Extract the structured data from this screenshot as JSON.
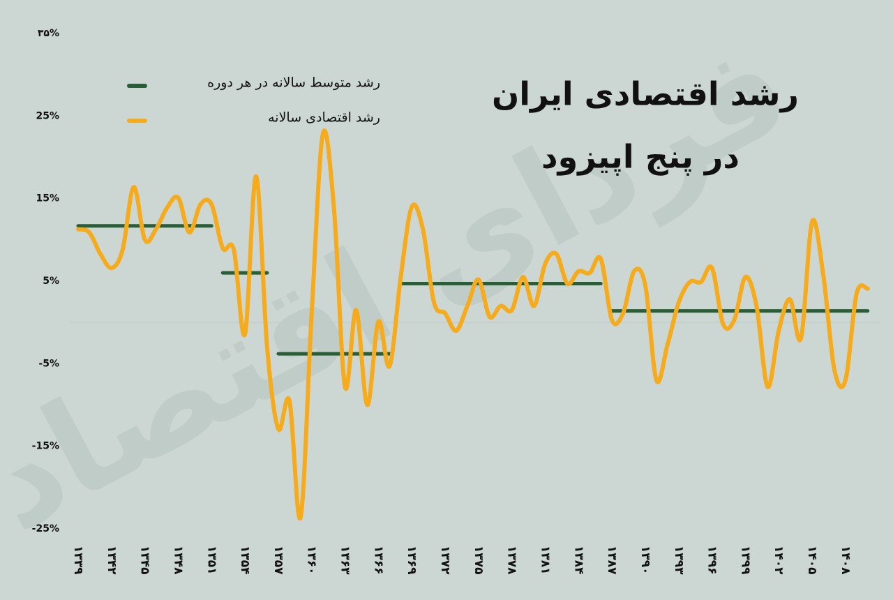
{
  "chart_data": {
    "type": "line",
    "title": [
      "رشد اقتصادی ایران",
      "در پنج اپیزود"
    ],
    "watermark": "فردای اقتصاد",
    "categories": [
      "۱۳۳۹",
      null,
      null,
      "۱۳۴۲",
      null,
      null,
      "۱۳۴۵",
      null,
      null,
      "۱۳۴۸",
      null,
      null,
      "۱۳۵۱",
      null,
      null,
      "۱۳۵۴",
      null,
      null,
      "۱۳۵۷",
      null,
      null,
      "۱۳۶۰",
      null,
      null,
      "۱۳۶۳",
      null,
      null,
      "۱۳۶۶",
      null,
      null,
      "۱۳۶۹",
      null,
      null,
      "۱۳۷۲",
      null,
      null,
      "۱۳۷۵",
      null,
      null,
      "۱۳۷۸",
      null,
      null,
      "۱۳۸۱",
      null,
      null,
      "۱۳۸۴",
      null,
      null,
      "۱۳۸۷",
      null,
      null,
      "۱۳۹۰",
      null,
      null,
      "۱۳۹۳",
      null,
      null,
      "۱۳۹۶",
      null,
      null,
      "۱۳۹۹",
      null,
      null,
      "۱۴۰۲",
      null,
      null,
      "۱۴۰۵",
      null,
      null,
      "۱۴۰۸",
      null,
      null
    ],
    "series": [
      {
        "name": "رشد متوسط سالانه در هر دوره",
        "color": "#2a5e36",
        "style": "step",
        "values": [
          11.7,
          11.7,
          11.7,
          11.7,
          11.7,
          11.7,
          11.7,
          11.7,
          11.7,
          11.7,
          11.7,
          11.7,
          11.7,
          6,
          6,
          6,
          6,
          6,
          -3.8,
          -3.8,
          -3.8,
          -3.8,
          -3.8,
          -3.8,
          -3.8,
          -3.8,
          -3.8,
          -3.8,
          -3.8,
          4.7,
          4.7,
          4.7,
          4.7,
          4.7,
          4.7,
          4.7,
          4.7,
          4.7,
          4.7,
          4.7,
          4.7,
          4.7,
          4.7,
          4.7,
          4.7,
          4.7,
          4.7,
          4.7,
          1.4,
          1.4,
          1.4,
          1.4,
          1.4,
          1.4,
          1.4,
          1.4,
          1.4,
          1.4,
          1.4,
          1.4,
          1.4,
          1.4,
          1.4,
          1.4,
          1.4,
          1.4,
          1.4,
          1.4,
          1.4,
          1.4,
          1.4,
          1.4
        ]
      },
      {
        "name": "رشد اقتصادی سالانه",
        "color": "#f5ab1b",
        "style": "smooth",
        "values": [
          11.3,
          10.9,
          8.3,
          6.6,
          8.8,
          16.4,
          10,
          11.3,
          13.9,
          15.1,
          10.9,
          14.3,
          14.3,
          9,
          8.8,
          -1.4,
          17.7,
          -3.1,
          -12.9,
          -9.5,
          -23.6,
          1.1,
          22.8,
          13.9,
          -7.8,
          1.5,
          -10,
          0.1,
          -5.3,
          5.4,
          14,
          11.3,
          2.4,
          1.1,
          -1,
          2,
          5.2,
          0.7,
          2,
          1.5,
          5.5,
          2,
          7.1,
          8.3,
          4.7,
          6.2,
          6,
          7.7,
          0.3,
          1.1,
          6.2,
          4.5,
          -7,
          -2.7,
          2.4,
          4.9,
          4.9,
          6.6,
          -0.2,
          0.3,
          5.5,
          2,
          -7.8,
          -1,
          2.8,
          -1.9,
          12.2,
          5.8,
          -5.7,
          -7,
          3.5,
          4.1
        ]
      }
    ],
    "ylim": [
      -25,
      35
    ],
    "yticks": [
      {
        "value": 35,
        "label": "۳۵%"
      },
      {
        "value": 25,
        "label": "25%"
      },
      {
        "value": 15,
        "label": "15%"
      },
      {
        "value": 5,
        "label": "5%"
      },
      {
        "value": -5,
        "label": "-5%"
      },
      {
        "value": -15,
        "label": "-15%"
      },
      {
        "value": -25,
        "label": "-25%"
      }
    ]
  }
}
